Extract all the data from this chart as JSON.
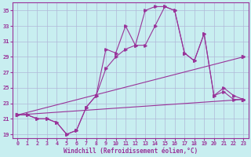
{
  "xlabel": "Windchill (Refroidissement éolien,°C)",
  "background_color": "#c8eef0",
  "grid_color": "#b0b8d8",
  "line_color": "#993399",
  "xlim": [
    -0.5,
    23.5
  ],
  "ylim": [
    18.5,
    36.0
  ],
  "yticks": [
    19,
    21,
    23,
    25,
    27,
    29,
    31,
    33,
    35
  ],
  "xticks": [
    0,
    1,
    2,
    3,
    4,
    5,
    6,
    7,
    8,
    9,
    10,
    11,
    12,
    13,
    14,
    15,
    16,
    17,
    18,
    19,
    20,
    21,
    22,
    23
  ],
  "series1_x": [
    0,
    1,
    2,
    3,
    4,
    5,
    6,
    7,
    8,
    9,
    10,
    11,
    12,
    13,
    14,
    15,
    16,
    17,
    18,
    19,
    20,
    21,
    22,
    23
  ],
  "series1_y": [
    21.5,
    21.5,
    21.0,
    21.0,
    20.5,
    19.0,
    19.5,
    22.5,
    24.0,
    30.0,
    29.5,
    33.0,
    30.5,
    35.0,
    35.5,
    35.5,
    35.0,
    29.5,
    28.5,
    32.0,
    24.0,
    25.0,
    24.0,
    23.5
  ],
  "series2_x": [
    0,
    1,
    2,
    3,
    4,
    5,
    6,
    7,
    8,
    9,
    10,
    11,
    12,
    13,
    14,
    15,
    16,
    17,
    18,
    19,
    20,
    21,
    22,
    23
  ],
  "series2_y": [
    21.5,
    21.5,
    21.0,
    21.0,
    20.5,
    19.0,
    19.5,
    22.5,
    24.0,
    27.5,
    29.0,
    30.0,
    30.5,
    30.5,
    33.0,
    35.5,
    35.0,
    29.5,
    28.5,
    32.0,
    24.0,
    24.5,
    23.5,
    23.5
  ],
  "series3_x": [
    0,
    23
  ],
  "series3_y": [
    21.5,
    29.0
  ],
  "series4_x": [
    0,
    23
  ],
  "series4_y": [
    21.5,
    23.5
  ],
  "marker_size": 2.5,
  "linewidth": 0.8
}
